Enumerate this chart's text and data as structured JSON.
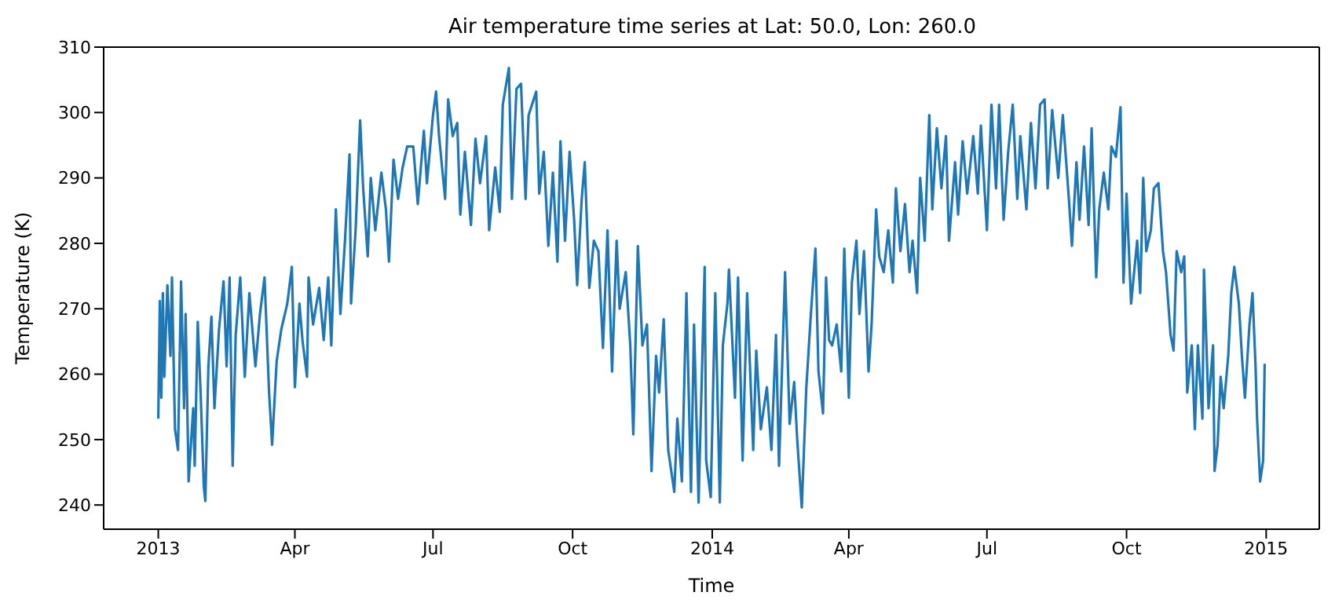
{
  "chart_data": {
    "type": "line",
    "title": "Air temperature time series at Lat: 50.0, Lon: 260.0",
    "xlabel": "Time",
    "ylabel": "Temperature (K)",
    "color": "#1f77b4",
    "xlim": [
      "2012-11-26",
      "2015-02-05"
    ],
    "ylim": [
      236.3,
      310
    ],
    "xticks": [
      {
        "value": "2013-01-01",
        "label": "2013"
      },
      {
        "value": "2013-04-01",
        "label": "Apr"
      },
      {
        "value": "2013-07-01",
        "label": "Jul"
      },
      {
        "value": "2013-10-01",
        "label": "Oct"
      },
      {
        "value": "2014-01-01",
        "label": "2014"
      },
      {
        "value": "2014-04-01",
        "label": "Apr"
      },
      {
        "value": "2014-07-01",
        "label": "Jul"
      },
      {
        "value": "2014-10-01",
        "label": "Oct"
      },
      {
        "value": "2015-01-01",
        "label": "2015"
      }
    ],
    "yticks": [
      240,
      250,
      260,
      270,
      280,
      290,
      300,
      310
    ],
    "x": [
      "2013-01-01",
      "2013-01-02",
      "2013-01-03",
      "2013-01-04",
      "2013-01-05",
      "2013-01-07",
      "2013-01-09",
      "2013-01-10",
      "2013-01-12",
      "2013-01-14",
      "2013-01-16",
      "2013-01-18",
      "2013-01-19",
      "2013-01-21",
      "2013-01-24",
      "2013-01-25",
      "2013-01-27",
      "2013-01-29",
      "2013-01-31",
      "2013-02-01",
      "2013-02-03",
      "2013-02-05",
      "2013-02-07",
      "2013-02-10",
      "2013-02-13",
      "2013-02-15",
      "2013-02-17",
      "2013-02-19",
      "2013-02-21",
      "2013-02-24",
      "2013-02-27",
      "2013-03-02",
      "2013-03-06",
      "2013-03-09",
      "2013-03-12",
      "2013-03-15",
      "2013-03-17",
      "2013-03-20",
      "2013-03-23",
      "2013-03-27",
      "2013-03-30",
      "2013-04-01",
      "2013-04-04",
      "2013-04-06",
      "2013-04-09",
      "2013-04-10",
      "2013-04-13",
      "2013-04-17",
      "2013-04-20",
      "2013-04-23",
      "2013-04-25",
      "2013-04-28",
      "2013-05-01",
      "2013-05-04",
      "2013-05-07",
      "2013-05-08",
      "2013-05-11",
      "2013-05-14",
      "2013-05-16",
      "2013-05-19",
      "2013-05-21",
      "2013-05-24",
      "2013-05-28",
      "2013-05-31",
      "2013-06-02",
      "2013-06-05",
      "2013-06-08",
      "2013-06-11",
      "2013-06-14",
      "2013-06-18",
      "2013-06-21",
      "2013-06-25",
      "2013-06-27",
      "2013-07-01",
      "2013-07-03",
      "2013-07-05",
      "2013-07-09",
      "2013-07-11",
      "2013-07-14",
      "2013-07-17",
      "2013-07-19",
      "2013-07-22",
      "2013-07-26",
      "2013-07-29",
      "2013-08-01",
      "2013-08-05",
      "2013-08-07",
      "2013-08-11",
      "2013-08-14",
      "2013-08-16",
      "2013-08-20",
      "2013-08-22",
      "2013-08-25",
      "2013-08-28",
      "2013-08-31",
      "2013-09-02",
      "2013-09-07",
      "2013-09-09",
      "2013-09-12",
      "2013-09-15",
      "2013-09-18",
      "2013-09-21",
      "2013-09-23",
      "2013-09-26",
      "2013-09-29",
      "2013-10-02",
      "2013-10-04",
      "2013-10-07",
      "2013-10-09",
      "2013-10-12",
      "2013-10-15",
      "2013-10-18",
      "2013-10-21",
      "2013-10-24",
      "2013-10-27",
      "2013-10-30",
      "2013-11-01",
      "2013-11-05",
      "2013-11-08",
      "2013-11-10",
      "2013-11-13",
      "2013-11-16",
      "2013-11-19",
      "2013-11-22",
      "2013-11-25",
      "2013-11-27",
      "2013-11-30",
      "2013-12-03",
      "2013-12-07",
      "2013-12-09",
      "2013-12-12",
      "2013-12-15",
      "2013-12-18",
      "2013-12-20",
      "2013-12-23",
      "2013-12-27",
      "2013-12-28",
      "2013-12-31",
      "2014-01-03",
      "2014-01-06",
      "2014-01-08",
      "2014-01-11",
      "2014-01-12",
      "2014-01-16",
      "2014-01-18",
      "2014-01-21",
      "2014-01-24",
      "2014-01-28",
      "2014-01-30",
      "2014-02-02",
      "2014-02-06",
      "2014-02-09",
      "2014-02-12",
      "2014-02-14",
      "2014-02-18",
      "2014-02-21",
      "2014-02-24",
      "2014-02-26",
      "2014-03-01",
      "2014-03-04",
      "2014-03-07",
      "2014-03-10",
      "2014-03-12",
      "2014-03-15",
      "2014-03-17",
      "2014-03-19",
      "2014-03-21",
      "2014-03-24",
      "2014-03-27",
      "2014-03-29",
      "2014-04-01",
      "2014-04-03",
      "2014-04-06",
      "2014-04-08",
      "2014-04-11",
      "2014-04-14",
      "2014-04-16",
      "2014-04-19",
      "2014-04-21",
      "2014-04-24",
      "2014-04-27",
      "2014-04-30",
      "2014-05-02",
      "2014-05-05",
      "2014-05-08",
      "2014-05-11",
      "2014-05-13",
      "2014-05-16",
      "2014-05-18",
      "2014-05-21",
      "2014-05-24",
      "2014-05-26",
      "2014-05-29",
      "2014-06-01",
      "2014-06-04",
      "2014-06-06",
      "2014-06-10",
      "2014-06-12",
      "2014-06-15",
      "2014-06-18",
      "2014-06-22",
      "2014-06-25",
      "2014-06-27",
      "2014-07-01",
      "2014-07-04",
      "2014-07-07",
      "2014-07-09",
      "2014-07-12",
      "2014-07-15",
      "2014-07-18",
      "2014-07-21",
      "2014-07-23",
      "2014-07-27",
      "2014-07-30",
      "2014-08-02",
      "2014-08-05",
      "2014-08-08",
      "2014-08-10",
      "2014-08-13",
      "2014-08-17",
      "2014-08-20",
      "2014-08-24",
      "2014-08-26",
      "2014-08-29",
      "2014-08-31",
      "2014-09-03",
      "2014-09-06",
      "2014-09-08",
      "2014-09-11",
      "2014-09-13",
      "2014-09-16",
      "2014-09-19",
      "2014-09-21",
      "2014-09-24",
      "2014-09-27",
      "2014-09-29",
      "2014-10-01",
      "2014-10-04",
      "2014-10-08",
      "2014-10-10",
      "2014-10-12",
      "2014-10-14",
      "2014-10-17",
      "2014-10-19",
      "2014-10-22",
      "2014-10-25",
      "2014-10-27",
      "2014-10-30",
      "2014-11-01",
      "2014-11-03",
      "2014-11-06",
      "2014-11-08",
      "2014-11-10",
      "2014-11-13",
      "2014-11-15",
      "2014-11-17",
      "2014-11-20",
      "2014-11-21",
      "2014-11-24",
      "2014-11-27",
      "2014-11-28",
      "2014-11-30",
      "2014-12-02",
      "2014-12-04",
      "2014-12-07",
      "2014-12-09",
      "2014-12-11",
      "2014-12-14",
      "2014-12-16",
      "2014-12-18",
      "2014-12-21",
      "2014-12-23",
      "2014-12-25",
      "2014-12-26",
      "2014-12-28",
      "2014-12-30",
      "2014-12-31"
    ],
    "values": [
      253.2,
      271.2,
      256.4,
      272.4,
      259.6,
      273.6,
      262.8,
      274.8,
      251.6,
      248.4,
      274.2,
      254.8,
      269.2,
      243.6,
      254.8,
      246,
      268,
      256.4,
      242.8,
      240.6,
      261.2,
      268.8,
      254.8,
      266.8,
      274.2,
      261.2,
      274.8,
      246,
      266,
      274.8,
      259.6,
      272.4,
      261.2,
      269.2,
      274.8,
      257.2,
      249.2,
      262,
      266.8,
      270.8,
      276.4,
      258,
      270.8,
      265.2,
      259.6,
      274.8,
      267.6,
      273.2,
      265.2,
      274.8,
      264.4,
      285.2,
      269.2,
      280.4,
      293.6,
      270.8,
      282,
      298.8,
      288.4,
      278,
      290,
      282,
      290.8,
      285.2,
      277.2,
      292.8,
      286.8,
      291.6,
      294.8,
      294.8,
      286,
      297.2,
      289.2,
      299.6,
      303.2,
      296.4,
      286.8,
      302,
      296.4,
      298.4,
      284.4,
      294,
      282.8,
      296,
      289.2,
      296.4,
      282,
      291.6,
      284.8,
      301.2,
      306.8,
      286.8,
      303.6,
      304.4,
      286.8,
      299.6,
      303.2,
      287.6,
      294,
      279.6,
      290.8,
      277.2,
      295.6,
      280.4,
      294,
      283.6,
      273.6,
      286.8,
      292.4,
      273.2,
      280.4,
      278.8,
      264,
      282,
      260.4,
      280.4,
      270,
      275.6,
      264.4,
      250.8,
      279.6,
      264.4,
      267.6,
      245.2,
      262.8,
      257.2,
      268.4,
      248.4,
      242,
      253.2,
      243.6,
      272.4,
      242,
      267.6,
      240.4,
      276.4,
      246.8,
      241.2,
      272.4,
      240.4,
      264.4,
      270.8,
      276,
      256.4,
      274.8,
      246.8,
      272.4,
      248.4,
      263.6,
      251.6,
      258,
      248.4,
      266,
      246,
      275.6,
      252.4,
      258.8,
      250,
      239.6,
      258,
      269.2,
      279.2,
      260.4,
      254,
      274.8,
      265.2,
      264.4,
      267.6,
      260.4,
      279.2,
      256.4,
      274,
      280.4,
      269.2,
      278.8,
      260.4,
      267.6,
      285.2,
      278,
      275.6,
      282,
      274,
      288.4,
      278.8,
      286,
      275.6,
      280.4,
      272.4,
      290,
      280.4,
      299.6,
      285.2,
      297.6,
      288.4,
      296.4,
      280.4,
      292.4,
      284.4,
      295.6,
      287.6,
      296.4,
      287.6,
      298,
      282,
      301.2,
      288.4,
      301.2,
      283.6,
      294,
      301.2,
      286.8,
      296.4,
      285.2,
      298.4,
      288.4,
      301.2,
      302,
      288.4,
      300.4,
      290,
      299.6,
      286.8,
      279.6,
      292.4,
      283.6,
      294.8,
      282.8,
      297.6,
      274.8,
      285.2,
      290.8,
      285.2,
      294.8,
      293.2,
      300.8,
      274,
      287.6,
      270.8,
      280.4,
      272.4,
      290,
      278.8,
      282,
      288.4,
      289.2,
      278.8,
      275.6,
      266,
      263.6,
      278.8,
      275.6,
      278,
      257.2,
      264.4,
      251.6,
      264.4,
      253.2,
      276,
      254.8,
      264.4,
      245.2,
      249.2,
      259.6,
      254.8,
      262.8,
      272.4,
      276.4,
      270.8,
      262.8,
      256.4,
      267.6,
      272.4,
      261.2,
      253.2,
      243.6,
      246.8,
      261.6
    ]
  }
}
